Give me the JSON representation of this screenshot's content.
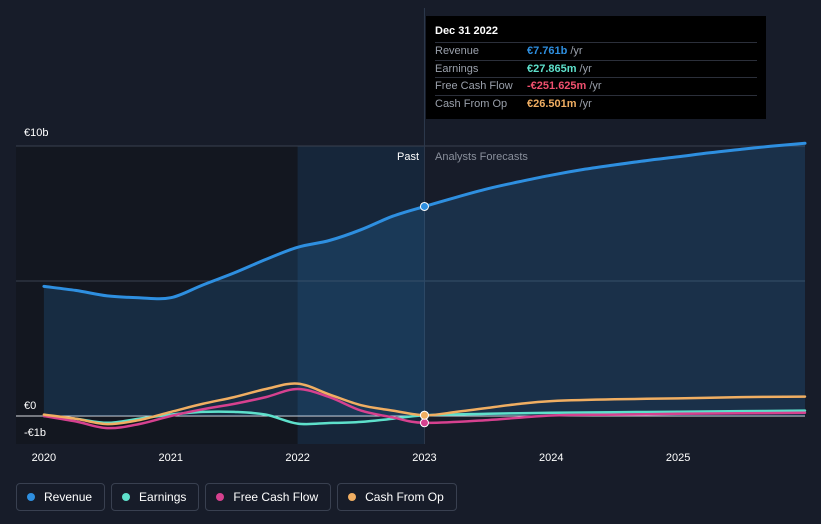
{
  "chart_data": {
    "type": "line",
    "currency": "EUR",
    "y_axis_labels": [
      "€10b",
      "€0",
      "-€1b"
    ],
    "y_axis_label_values": [
      10,
      0,
      -1
    ],
    "ylim": [
      -1,
      10
    ],
    "x_tick_labels": [
      "2020",
      "2021",
      "2022",
      "2023",
      "2024",
      "2025"
    ],
    "x_tick_values": [
      2020,
      2021,
      2022,
      2023,
      2024,
      2025
    ],
    "xlim": [
      2019.78,
      2026.0
    ],
    "divider_x": 2023.0,
    "past_start_x": 2022.0,
    "past_label": "Past",
    "forecast_label": "Analysts Forecasts",
    "unit": "€ billions",
    "series": [
      {
        "name": "Revenue",
        "color": "#2e8fe0",
        "fill": true,
        "points": [
          [
            2020.0,
            4.8
          ],
          [
            2020.25,
            4.65
          ],
          [
            2020.5,
            4.45
          ],
          [
            2020.75,
            4.38
          ],
          [
            2021.0,
            4.38
          ],
          [
            2021.25,
            4.85
          ],
          [
            2021.5,
            5.3
          ],
          [
            2021.75,
            5.8
          ],
          [
            2022.0,
            6.25
          ],
          [
            2022.25,
            6.5
          ],
          [
            2022.5,
            6.9
          ],
          [
            2022.75,
            7.4
          ],
          [
            2023.0,
            7.761
          ],
          [
            2023.25,
            8.1
          ],
          [
            2023.5,
            8.42
          ],
          [
            2023.75,
            8.68
          ],
          [
            2024.0,
            8.92
          ],
          [
            2024.25,
            9.13
          ],
          [
            2024.5,
            9.3
          ],
          [
            2024.75,
            9.46
          ],
          [
            2025.0,
            9.6
          ],
          [
            2025.25,
            9.75
          ],
          [
            2025.5,
            9.88
          ],
          [
            2025.75,
            10.0
          ],
          [
            2026.0,
            10.1
          ]
        ],
        "highlight": [
          2023.0,
          7.761
        ]
      },
      {
        "name": "Earnings",
        "color": "#5ee0cb",
        "fill": false,
        "points": [
          [
            2020.0,
            0.0
          ],
          [
            2020.25,
            -0.1
          ],
          [
            2020.5,
            -0.25
          ],
          [
            2020.75,
            -0.1
          ],
          [
            2021.0,
            0.05
          ],
          [
            2021.25,
            0.15
          ],
          [
            2021.5,
            0.15
          ],
          [
            2021.75,
            0.05
          ],
          [
            2022.0,
            -0.28
          ],
          [
            2022.25,
            -0.26
          ],
          [
            2022.5,
            -0.22
          ],
          [
            2022.75,
            -0.1
          ],
          [
            2023.0,
            0.028
          ],
          [
            2023.5,
            0.08
          ],
          [
            2024.0,
            0.12
          ],
          [
            2024.5,
            0.14
          ],
          [
            2025.0,
            0.16
          ],
          [
            2025.5,
            0.18
          ],
          [
            2026.0,
            0.2
          ]
        ],
        "highlight": [
          2023.0,
          0.028
        ]
      },
      {
        "name": "Free Cash Flow",
        "color": "#d6418f",
        "fill": false,
        "points": [
          [
            2020.0,
            0.0
          ],
          [
            2020.25,
            -0.2
          ],
          [
            2020.5,
            -0.45
          ],
          [
            2020.75,
            -0.3
          ],
          [
            2021.0,
            0.0
          ],
          [
            2021.25,
            0.25
          ],
          [
            2021.5,
            0.45
          ],
          [
            2021.75,
            0.7
          ],
          [
            2022.0,
            1.0
          ],
          [
            2022.25,
            0.7
          ],
          [
            2022.5,
            0.2
          ],
          [
            2022.75,
            -0.05
          ],
          [
            2023.0,
            -0.252
          ],
          [
            2023.5,
            -0.15
          ],
          [
            2024.0,
            0.02
          ],
          [
            2024.5,
            0.05
          ],
          [
            2025.0,
            0.08
          ],
          [
            2025.5,
            0.1
          ],
          [
            2026.0,
            0.12
          ]
        ],
        "highlight": [
          2023.0,
          -0.252
        ]
      },
      {
        "name": "Cash From Op",
        "color": "#f0ae62",
        "fill": false,
        "points": [
          [
            2020.0,
            0.05
          ],
          [
            2020.25,
            -0.1
          ],
          [
            2020.5,
            -0.3
          ],
          [
            2020.75,
            -0.15
          ],
          [
            2021.0,
            0.15
          ],
          [
            2021.25,
            0.45
          ],
          [
            2021.5,
            0.7
          ],
          [
            2021.75,
            1.0
          ],
          [
            2022.0,
            1.2
          ],
          [
            2022.25,
            0.8
          ],
          [
            2022.5,
            0.4
          ],
          [
            2022.75,
            0.2
          ],
          [
            2023.0,
            0.027
          ],
          [
            2023.25,
            0.15
          ],
          [
            2023.5,
            0.3
          ],
          [
            2023.75,
            0.45
          ],
          [
            2024.0,
            0.55
          ],
          [
            2024.5,
            0.62
          ],
          [
            2025.0,
            0.65
          ],
          [
            2025.5,
            0.7
          ],
          [
            2026.0,
            0.72
          ]
        ],
        "highlight": [
          2023.0,
          0.027
        ]
      }
    ]
  },
  "tooltip": {
    "date": "Dec 31 2022",
    "rows": [
      {
        "name": "Revenue",
        "value": "€7.761b",
        "unit": "/yr",
        "color": "#2e8fe0"
      },
      {
        "name": "Earnings",
        "value": "€27.865m",
        "unit": "/yr",
        "color": "#5ee0cb"
      },
      {
        "name": "Free Cash Flow",
        "value": "-€251.625m",
        "unit": "/yr",
        "color": "#f0506e"
      },
      {
        "name": "Cash From Op",
        "value": "€26.501m",
        "unit": "/yr",
        "color": "#f0ae62"
      }
    ]
  },
  "legend": [
    {
      "label": "Revenue",
      "color": "#2e8fe0"
    },
    {
      "label": "Earnings",
      "color": "#5ee0cb"
    },
    {
      "label": "Free Cash Flow",
      "color": "#d6418f"
    },
    {
      "label": "Cash From Op",
      "color": "#f0ae62"
    }
  ]
}
